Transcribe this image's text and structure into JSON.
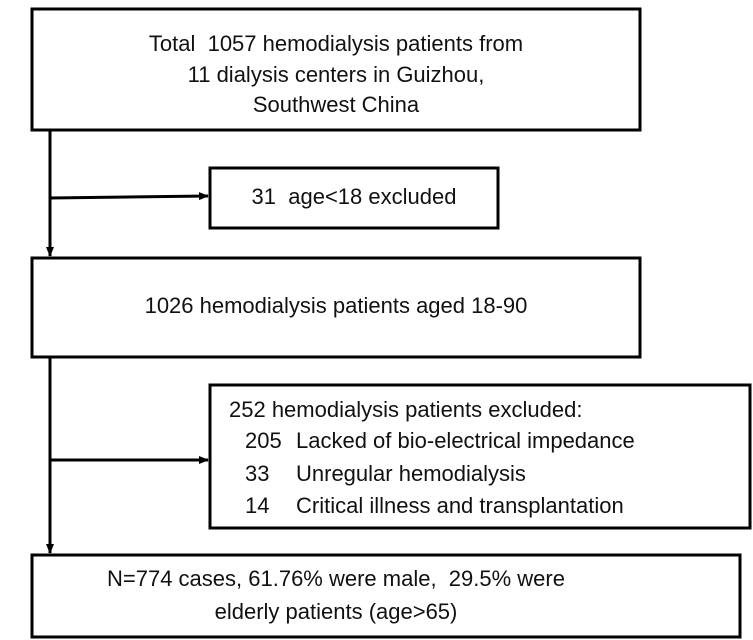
{
  "nodes": [
    {
      "lines": [
        "Total  1057 hemodialysis patients from",
        "11 dialysis centers in Guizhou,",
        "Southwest China"
      ]
    },
    {
      "lines": [
        "31  age<18 excluded"
      ]
    },
    {
      "lines": [
        "1026 hemodialysis patients aged 18-90"
      ]
    },
    {
      "title": "252 hemodialysis patients excluded:",
      "items": [
        {
          "count": "205",
          "label": "Lacked of bio-electrical impedance"
        },
        {
          "count": "33",
          "label": "Unregular hemodialysis"
        },
        {
          "count": "14",
          "label": "Critical illness and transplantation"
        }
      ]
    },
    {
      "lines": [
        "N=774 cases, 61.76% were male,  29.5% were",
        "elderly patients (age>65)"
      ]
    }
  ]
}
